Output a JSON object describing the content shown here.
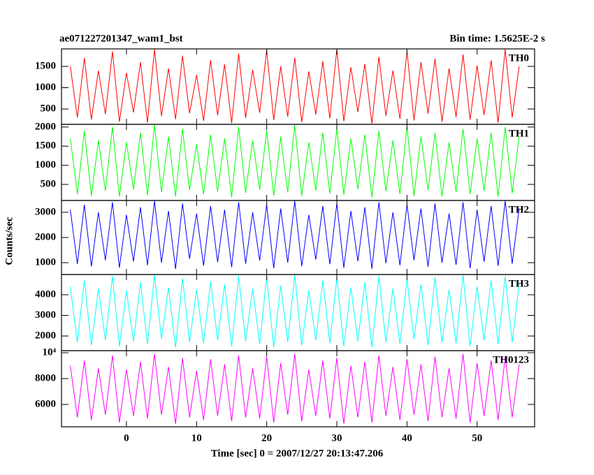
{
  "chart_data": {
    "type": "line",
    "title": "ae071227201347_wam1_bst",
    "subtitle": "Bin time: 1.5625E-2 s",
    "xlabel": "Time [sec] 0 = 2007/12/27 20:13:47.206",
    "ylabel": "Counts/sec",
    "xlim": [
      -9.26,
      58.2
    ],
    "xticks": [
      0,
      10,
      20,
      30,
      40,
      50
    ],
    "x": [
      -8,
      -7,
      -6,
      -5,
      -4,
      -3,
      -2,
      -1,
      0,
      1,
      2,
      3,
      4,
      5,
      6,
      7,
      8,
      9,
      10,
      11,
      12,
      13,
      14,
      15,
      16,
      17,
      18,
      19,
      20,
      21,
      22,
      23,
      24,
      25,
      26,
      27,
      28,
      29,
      30,
      31,
      32,
      33,
      34,
      35,
      36,
      37,
      38,
      39,
      40,
      41,
      42,
      43,
      44,
      45,
      46,
      47,
      48,
      49,
      50,
      51,
      52,
      53,
      54,
      55,
      56
    ],
    "series": [
      {
        "name": "TH0",
        "color": "#ff0000",
        "ylim": [
          140,
          1910
        ],
        "yticks": [
          500,
          1000,
          1500
        ],
        "values": [
          1500,
          300,
          1700,
          250,
          1400,
          380,
          1850,
          200,
          1350,
          420,
          1600,
          180,
          1900,
          330,
          1450,
          260,
          1750,
          400,
          1300,
          220,
          1650,
          350,
          1550,
          170,
          1800,
          290,
          1420,
          410,
          1880,
          240,
          1500,
          320,
          1700,
          190,
          1380,
          370,
          1620,
          280,
          1900,
          210,
          1480,
          430,
          1560,
          160,
          1720,
          340,
          1400,
          270,
          1850,
          230,
          1600,
          390,
          1680,
          200,
          1450,
          310,
          1780,
          250,
          1520,
          360,
          1640,
          180,
          1900,
          300,
          1500
        ]
      },
      {
        "name": "TH1",
        "color": "#00ff00",
        "ylim": [
          80,
          2070
        ],
        "yticks": [
          500,
          1000,
          1500,
          2000
        ],
        "values": [
          1700,
          250,
          1900,
          200,
          1650,
          330,
          2000,
          180,
          1600,
          370,
          1850,
          220,
          2050,
          300,
          1750,
          190,
          1950,
          350,
          1550,
          240,
          1800,
          310,
          1700,
          170,
          2000,
          280,
          1650,
          360,
          1900,
          210,
          1750,
          290,
          2050,
          200,
          1600,
          340,
          1850,
          260,
          1950,
          230,
          1700,
          380,
          1800,
          160,
          1900,
          320,
          1650,
          250,
          2000,
          200,
          1750,
          350,
          1850,
          190,
          1600,
          300,
          1950,
          240,
          1700,
          330,
          1850,
          180,
          2000,
          270,
          1750
        ]
      },
      {
        "name": "TH2",
        "color": "#0000ff",
        "ylim": [
          530,
          3470
        ],
        "yticks": [
          1000,
          2000,
          3000
        ],
        "values": [
          3100,
          950,
          3300,
          850,
          3000,
          1100,
          3400,
          800,
          2900,
          1050,
          3200,
          900,
          3450,
          1000,
          3050,
          750,
          3350,
          1150,
          2950,
          880,
          3250,
          1020,
          3100,
          820,
          3400,
          960,
          3000,
          1080,
          3300,
          780,
          3150,
          1000,
          3450,
          860,
          2900,
          1120,
          3250,
          940,
          3350,
          800,
          3050,
          1060,
          3200,
          760,
          3400,
          980,
          3000,
          900,
          3300,
          1100,
          3150,
          840,
          3350,
          1000,
          2950,
          920,
          3400,
          780,
          3100,
          1040,
          3250,
          870,
          3450,
          960,
          3150
        ]
      },
      {
        "name": "TH3",
        "color": "#00ffff",
        "ylim": [
          1290,
          4980
        ],
        "yticks": [
          2000,
          3000,
          4000
        ],
        "values": [
          4400,
          1700,
          4700,
          1550,
          4300,
          1800,
          4900,
          1500,
          4200,
          1750,
          4600,
          1600,
          4950,
          1850,
          4350,
          1450,
          4800,
          1700,
          4250,
          1650,
          4650,
          1800,
          4500,
          1500,
          4900,
          1750,
          4300,
          1600,
          4850,
          1450,
          4450,
          1700,
          4950,
          1550,
          4200,
          1800,
          4700,
          1650,
          4800,
          1500,
          4350,
          1750,
          4600,
          1450,
          4900,
          1700,
          4300,
          1600,
          4750,
          1850,
          4500,
          1550,
          4850,
          1700,
          4250,
          1650,
          4950,
          1500,
          4400,
          1800,
          4700,
          1600,
          4900,
          1700,
          4550
        ]
      },
      {
        "name": "TH0123",
        "color": "#ff00ff",
        "ylim": [
          4270,
          10160
        ],
        "yticks": [
          6000,
          8000,
          {
            "value": 10000,
            "label": "10⁴"
          }
        ],
        "values": [
          9000,
          5000,
          9400,
          4800,
          8800,
          5200,
          9800,
          4600,
          8700,
          5100,
          9300,
          4900,
          9900,
          5200,
          8900,
          4500,
          9600,
          5000,
          8600,
          4800,
          9500,
          5100,
          9100,
          4700,
          9800,
          5000,
          8800,
          4900,
          9700,
          4600,
          9200,
          5200,
          9900,
          4700,
          8700,
          5100,
          9400,
          4900,
          9600,
          4500,
          9000,
          5000,
          9300,
          4600,
          9800,
          5100,
          8900,
          4800,
          9500,
          5200,
          9100,
          4700,
          9700,
          5000,
          8800,
          4900,
          9900,
          4600,
          9200,
          5100,
          9400,
          4800,
          9700,
          5000,
          9100
        ]
      }
    ]
  }
}
